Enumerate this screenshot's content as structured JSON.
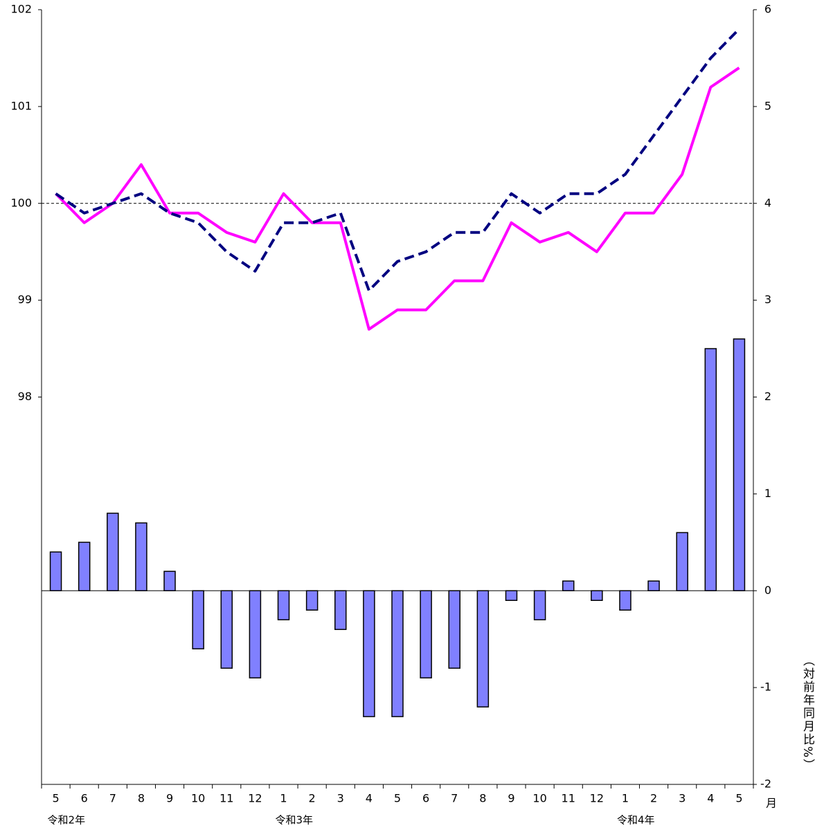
{
  "chart_data": {
    "type": "bar",
    "categories": [
      "5",
      "6",
      "7",
      "8",
      "9",
      "10",
      "11",
      "12",
      "1",
      "2",
      "3",
      "4",
      "5",
      "6",
      "7",
      "8",
      "9",
      "10",
      "11",
      "12",
      "1",
      "2",
      "3",
      "4",
      "5"
    ],
    "year_labels": [
      "令和2年",
      null,
      null,
      null,
      null,
      null,
      null,
      null,
      "令和3年",
      null,
      null,
      null,
      null,
      null,
      null,
      null,
      null,
      null,
      null,
      null,
      "令和4年",
      null,
      null,
      null,
      null
    ],
    "x_unit": "月",
    "y2_label": "（対前年同月比%）",
    "ylim": [
      94,
      102
    ],
    "yticks": [
      98,
      99,
      100,
      101,
      102
    ],
    "y2lim": [
      -2,
      6
    ],
    "y2ticks": [
      -2,
      -1,
      0,
      1,
      2,
      3,
      4,
      5,
      6
    ],
    "reference_line": 100,
    "series": [
      {
        "type": "bar",
        "axis": "y2",
        "color": "#8080ff",
        "values": [
          0.4,
          0.5,
          0.8,
          0.7,
          0.2,
          -0.6,
          -0.8,
          -0.9,
          -0.3,
          -0.2,
          -0.4,
          -1.3,
          -1.3,
          -0.9,
          -0.8,
          -1.2,
          -0.1,
          -0.3,
          0.1,
          -0.1,
          -0.2,
          0.1,
          0.6,
          2.5,
          2.6
        ]
      },
      {
        "type": "line",
        "axis": "y",
        "color": "#ff00ff",
        "dash": false,
        "values": [
          100.1,
          99.8,
          100.0,
          100.4,
          99.9,
          99.9,
          99.7,
          99.6,
          100.1,
          99.8,
          99.8,
          98.7,
          98.9,
          98.9,
          99.2,
          99.2,
          99.8,
          99.6,
          99.7,
          99.5,
          99.9,
          99.9,
          100.3,
          101.2,
          101.4
        ]
      },
      {
        "type": "line",
        "axis": "y",
        "color": "#000080",
        "dash": true,
        "values": [
          100.1,
          99.9,
          100.0,
          100.1,
          99.9,
          99.8,
          99.5,
          99.3,
          99.8,
          99.8,
          99.9,
          99.1,
          99.4,
          99.5,
          99.7,
          99.7,
          100.1,
          99.9,
          100.1,
          100.1,
          100.3,
          100.7,
          101.1,
          101.5,
          101.8
        ]
      }
    ]
  }
}
